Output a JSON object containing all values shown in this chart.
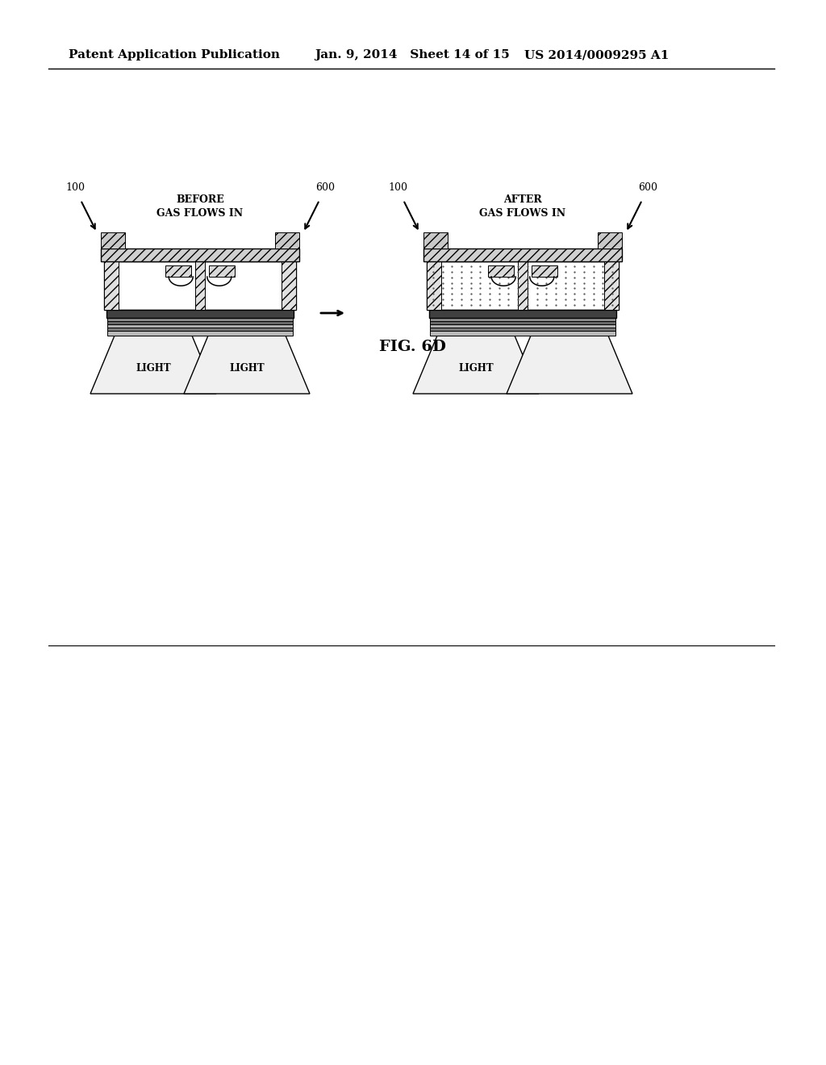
{
  "title": "FIG. 6D",
  "header_left": "Patent Application Publication",
  "header_mid": "Jan. 9, 2014   Sheet 14 of 15",
  "header_right": "US 2014/0009295 A1",
  "bg_color": "#ffffff",
  "text_color": "#000000",
  "label_before": "BEFORE\nGAS FLOWS IN",
  "label_after": "AFTER\nGAS FLOWS IN",
  "ref_100_left": "100",
  "ref_600_left": "600",
  "ref_100_right": "100",
  "ref_600_right": "600"
}
